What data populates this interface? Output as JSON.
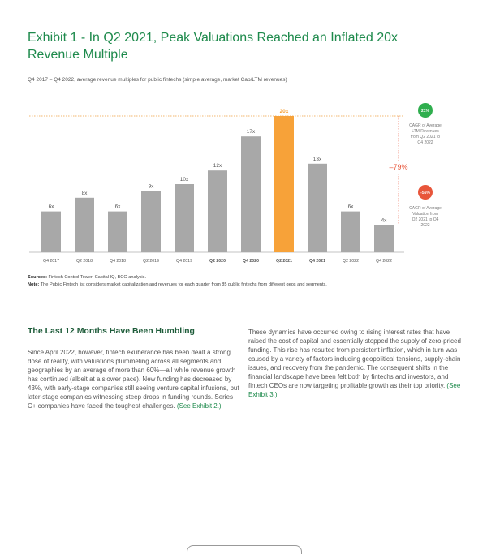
{
  "exhibit": {
    "title": "Exhibit 1 - In Q2 2021, Peak Valuations Reached an Inflated 20x Revenue Multiple",
    "subtitle": "Q4 2017 – Q4 2022, average revenue multiples for public fintechs (simple average, market Cap/LTM revenues)"
  },
  "chart_data": {
    "type": "bar",
    "categories": [
      "Q4 2017",
      "Q2 2018",
      "Q4 2018",
      "Q2 2019",
      "Q4 2019",
      "Q2 2020",
      "Q4 2020",
      "Q2 2021",
      "Q4 2021",
      "Q2 2022",
      "Q4 2022"
    ],
    "bold_categories": [
      "Q2 2020",
      "Q4 2020",
      "Q2 2021",
      "Q4 2021"
    ],
    "values": [
      6,
      8,
      6,
      9,
      10,
      12,
      17,
      20,
      13,
      6,
      4
    ],
    "value_labels": [
      "6x",
      "8x",
      "6x",
      "9x",
      "10x",
      "12x",
      "17x",
      "20x",
      "13x",
      "6x",
      "4x"
    ],
    "highlight_index": 7,
    "colors": {
      "bar": "#a8a8a8",
      "highlight": "#f7a239",
      "green": "#2fae4e",
      "red": "#e8553a",
      "dotted": "#f0a040"
    },
    "annotations": {
      "drop_label": "–79%",
      "cagr_revenue_badge": "21%",
      "cagr_revenue_text": "CAGR of Average LTM Revenues from Q2 2021 to Q4 2022",
      "cagr_valuation_badge": "-55%",
      "cagr_valuation_text": "CAGR of Average Valuation from Q2 2021 to Q4 2022"
    }
  },
  "sources": {
    "sources_label": "Sources:",
    "sources_text": " Fintech Control Tower, Capital IQ, BCG analysis.",
    "note_label": "Note:",
    "note_text": " The Public Fintech list considers market capitalization and revenues for each quarter from 85 public fintechs from different geos and segments."
  },
  "section": {
    "heading": "The Last 12 Months Have Been Humbling",
    "left_text": "Since April 2022, however, fintech exuberance has been dealt a strong dose of reality, with valuations plummeting across all segments and geographies by an average of more than 60%—all while revenue growth has continued (albeit at a slower pace). New funding has decreased by 43%, with early-stage companies still seeing venture capital infusions, but later-stage companies witnessing steep drops in funding rounds. Series C+ companies have faced the toughest challenges. ",
    "left_link": "(See Exhibit 2.)",
    "right_text": "These dynamics have occurred owing to rising interest rates that have raised the cost of capital and essentially stopped the supply of zero-priced funding. This rise has resulted from persistent inflation, which in turn was caused by a variety of factors including geopolitical tensions, supply-chain issues, and recovery from the pandemic. The consequent shifts in the financial landscape have been felt both by fintechs and investors, and fintech CEOs are now targeting profitable growth as their top priority. ",
    "right_link": "(See Exhibit 3.)"
  }
}
